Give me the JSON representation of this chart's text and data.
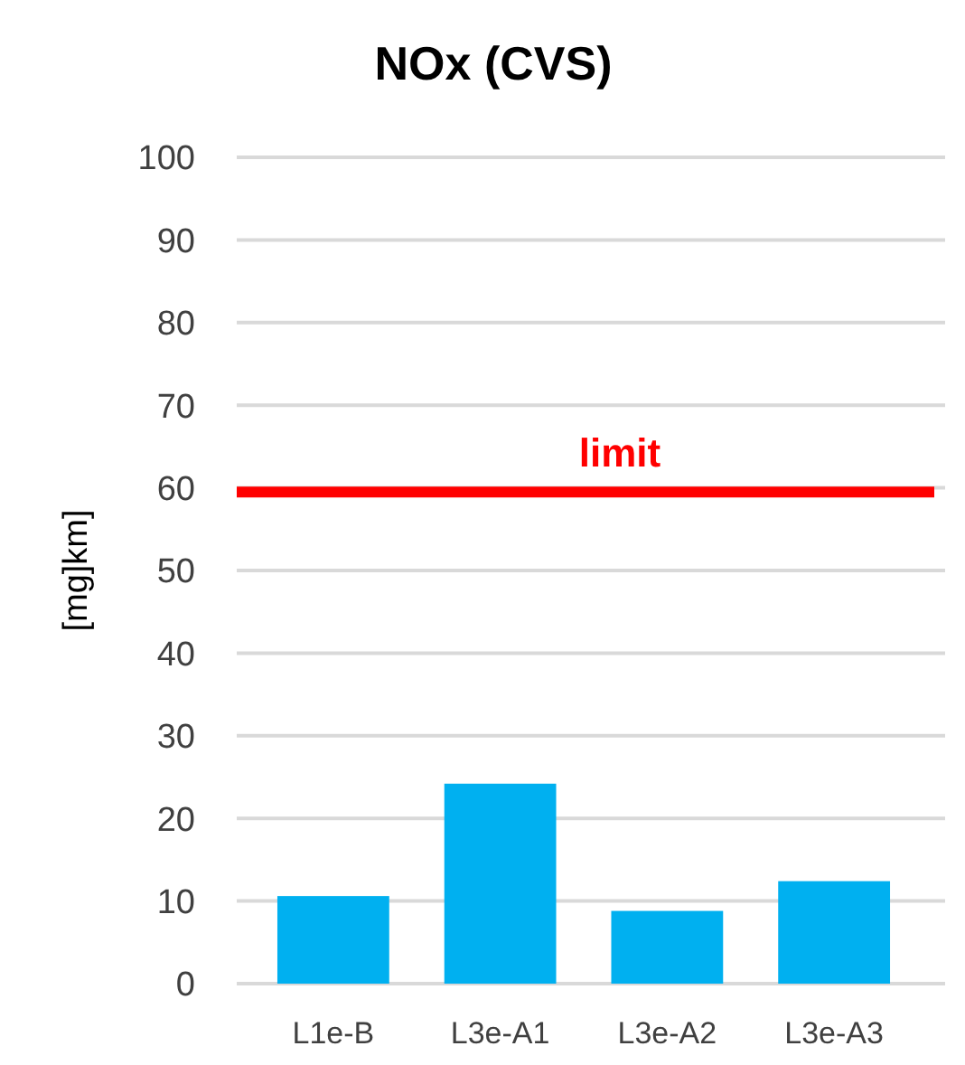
{
  "chart_data": {
    "type": "bar",
    "title": "NOx (CVS)",
    "ylabel": "[mg]km]",
    "categories": [
      "L1e-B",
      "L3e-A1",
      "L3e-A2",
      "L3e-A3"
    ],
    "values": [
      10.6,
      24.2,
      8.8,
      12.4
    ],
    "color": "#00b0f0",
    "ylim": [
      0,
      100
    ],
    "yticks": [
      0,
      10,
      20,
      30,
      40,
      50,
      60,
      70,
      80,
      90,
      100
    ],
    "grid": "y",
    "ref_lines": [
      {
        "axis": "y",
        "value": 59.5,
        "label": "limit",
        "color": "#ff0000"
      }
    ]
  }
}
